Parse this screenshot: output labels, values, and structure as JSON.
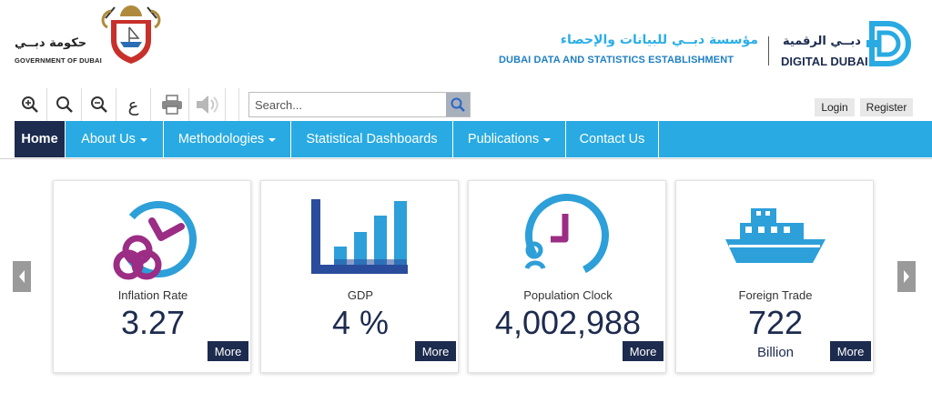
{
  "header": {
    "gov_ar": "حكومة دبــي",
    "gov_en": "GOVERNMENT OF DUBAI",
    "dsc_ar": "مؤسسة دبــي للبيانات والإحصاء",
    "dsc_en": "DUBAI DATA AND STATISTICS ESTABLISHMENT",
    "dd_ar": "دبــي الرقمية",
    "dd_en": "DIGITAL DUBAI"
  },
  "toolbar": {
    "zoom_in": "zoom-in-icon",
    "reset": "search-icon",
    "zoom_out": "zoom-out-icon",
    "lang_glyph": "ع",
    "print": "printer-icon",
    "audio": "speaker-icon"
  },
  "search": {
    "placeholder": "Search..."
  },
  "auth": {
    "login": "Login",
    "register": "Register"
  },
  "nav": {
    "items": [
      {
        "label": "Home"
      },
      {
        "label": "About Us"
      },
      {
        "label": "Methodologies"
      },
      {
        "label": "Statistical Dashboards"
      },
      {
        "label": "Publications"
      },
      {
        "label": "Contact Us"
      }
    ]
  },
  "cards": [
    {
      "title": "Inflation Rate",
      "value": "3.27",
      "sub": "",
      "more": "More"
    },
    {
      "title": "GDP",
      "value": "4 %",
      "sub": "",
      "more": "More"
    },
    {
      "title": "Population Clock",
      "value": "4,002,988",
      "sub": "",
      "more": "More"
    },
    {
      "title": "Foreign Trade",
      "value": "722",
      "sub": "Billion",
      "more": "More"
    }
  ],
  "colors": {
    "nav_bg": "#29aae2",
    "nav_active": "#1c2b4e",
    "accent_purple": "#9b2d84",
    "accent_blue": "#2d9fd9",
    "navy": "#1c2b4e"
  }
}
